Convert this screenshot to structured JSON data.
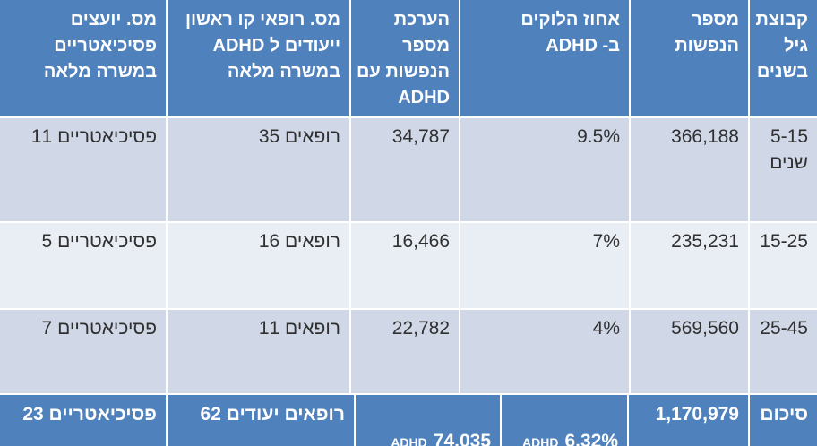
{
  "chart_data": {
    "type": "table",
    "direction": "rtl",
    "language": "hebrew",
    "columns": [
      {
        "id": "age_group",
        "label": "קבוצת\nגיל\nבשנים"
      },
      {
        "id": "population",
        "label": "מספר\nהנפשות"
      },
      {
        "id": "adhd_percent",
        "label": "אחוז הלוקים\nב- ADHD"
      },
      {
        "id": "adhd_estimate",
        "label": "הערכת מספר\nהנפשות עם\nADHD"
      },
      {
        "id": "dedicated_doctors",
        "label": "מס. רופאי קו ראשון\nייעודים ל ADHD\nבמשרה מלאה"
      },
      {
        "id": "psychiatrists",
        "label": "מס. יועצים\nפסיכיאטריים\nבמשרה מלאה"
      }
    ],
    "rows": [
      {
        "age_group": "5-15\nשנים",
        "population": "366,188",
        "adhd_percent": "9.5%",
        "adhd_estimate": "34,787",
        "dedicated_doctors": "35 רופאים",
        "psychiatrists": "11 פסיכיאטריים"
      },
      {
        "age_group": "15-25",
        "population": "235,231",
        "adhd_percent": "7%",
        "adhd_estimate": "16,466",
        "dedicated_doctors": "16 רופאים",
        "psychiatrists": "5 פסיכיאטריים"
      },
      {
        "age_group": "25-45",
        "population": "569,560",
        "adhd_percent": "4%",
        "adhd_estimate": "22,782",
        "dedicated_doctors": "11 רופאים",
        "psychiatrists": "7 פסיכיאטריים"
      }
    ],
    "totals": {
      "row_label": "סיכום",
      "population": "1,170,979",
      "adhd_percent_label": "ADHD",
      "adhd_percent": "6.32%",
      "adhd_estimate_label": "ADHD",
      "adhd_estimate": "74,035",
      "dedicated_doctors": "62 רופאים יעודים",
      "psychiatrists": "23 פסיכיאטריים"
    },
    "colors": {
      "header_bg": "#4F81BD",
      "total_bg": "#4F81BD",
      "band_dark": "#D0D8E8",
      "band_light": "#E9EDF4",
      "header_text": "#FFFFFF",
      "body_text": "#303030",
      "gridline": "#FFFFFF"
    },
    "layout": {
      "legend": "none",
      "grid": "white 2px separators"
    }
  }
}
